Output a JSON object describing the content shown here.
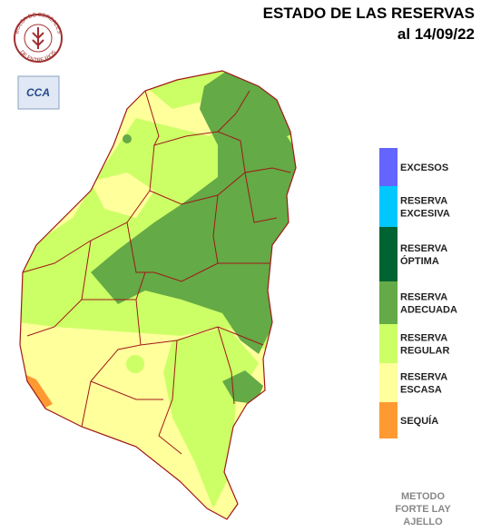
{
  "header": {
    "title": "ESTADO DE LAS RESERVAS",
    "date": "al 14/09/22"
  },
  "logo": {
    "top": "BOLSA DE CEREALES",
    "bottom": "DE ENTRE RIOS",
    "badge": "CCA"
  },
  "legend": [
    {
      "lines": [
        "EXCESOS"
      ],
      "color": "#6464ff"
    },
    {
      "lines": [
        "RESERVA",
        "EXCESIVA"
      ],
      "color": "#00c8ff"
    },
    {
      "lines": [
        "RESERVA",
        "ÓPTIMA"
      ],
      "color": "#006432"
    },
    {
      "lines": [
        "RESERVA",
        "ADECUADA"
      ],
      "color": "#64aa46"
    },
    {
      "lines": [
        "RESERVA",
        "REGULAR"
      ],
      "color": "#ccff66"
    },
    {
      "lines": [
        "RESERVA",
        "ESCASA"
      ],
      "color": "#ffff9c"
    },
    {
      "lines": [
        "SEQUÍA"
      ],
      "color": "#ff9a32"
    }
  ],
  "footer": [
    "METODO",
    "FORTE LAY",
    "AJELLO"
  ]
}
